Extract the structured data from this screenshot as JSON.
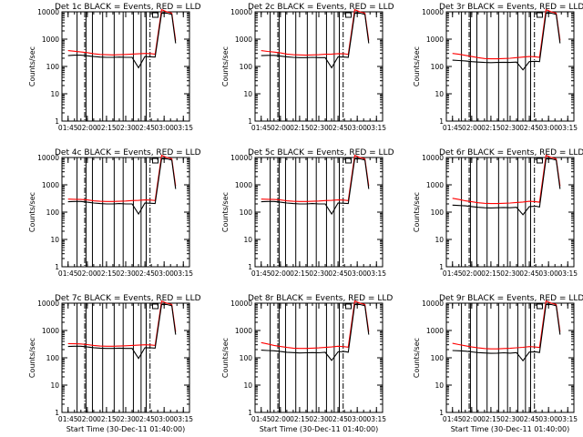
{
  "chart_data": [
    {
      "type": "line",
      "title": "Det 1c BLACK = Events, RED = LLD",
      "xlabel": "",
      "ylabel": "Counts/sec",
      "x_ticks": [
        "01:45",
        "02:00",
        "02:15",
        "02:30",
        "02:45",
        "03:00",
        "03:15"
      ],
      "xlim": [
        1.67,
        3.33
      ],
      "y_ticks": [
        "1",
        "10",
        "100",
        "1000",
        "10000"
      ],
      "ylim": [
        1,
        10000
      ],
      "yscale": "log",
      "x_minutes": [
        105,
        110,
        115,
        120,
        125,
        130,
        135,
        140,
        145,
        150,
        155,
        160,
        165,
        170,
        173,
        178,
        182,
        186,
        189
      ],
      "series": [
        {
          "name": "BLACK = Events",
          "color": "#000000",
          "values": [
            250,
            260,
            260,
            245,
            230,
            220,
            215,
            215,
            220,
            215,
            215,
            90,
            230,
            225,
            220,
            9000,
            9000,
            8000,
            700
          ]
        },
        {
          "name": "RED = LLD",
          "color": "#ff0000",
          "values": [
            380,
            360,
            340,
            320,
            290,
            275,
            270,
            265,
            270,
            275,
            285,
            290,
            300,
            295,
            280,
            12000,
            10000,
            9000,
            900
          ]
        }
      ]
    },
    {
      "type": "line",
      "title": "Det 2c BLACK = Events, RED = LLD",
      "xlabel": "",
      "ylabel": "Counts/sec",
      "x_ticks": [
        "01:45",
        "02:00",
        "02:15",
        "02:30",
        "02:45",
        "03:00",
        "03:15"
      ],
      "xlim": [
        1.67,
        3.33
      ],
      "y_ticks": [
        "1",
        "10",
        "100",
        "1000",
        "10000"
      ],
      "ylim": [
        1,
        10000
      ],
      "yscale": "log",
      "x_minutes": [
        105,
        110,
        115,
        120,
        125,
        130,
        135,
        140,
        145,
        150,
        155,
        160,
        165,
        170,
        173,
        178,
        182,
        186,
        189
      ],
      "series": [
        {
          "name": "BLACK = Events",
          "color": "#000000",
          "values": [
            250,
            255,
            255,
            240,
            225,
            215,
            210,
            210,
            215,
            210,
            210,
            90,
            225,
            220,
            215,
            9000,
            9000,
            8000,
            700
          ]
        },
        {
          "name": "RED = LLD",
          "color": "#ff0000",
          "values": [
            380,
            355,
            335,
            315,
            285,
            270,
            265,
            260,
            265,
            270,
            280,
            285,
            295,
            290,
            275,
            12000,
            10000,
            9000,
            900
          ]
        }
      ]
    },
    {
      "type": "line",
      "title": "Det 3r BLACK = Events, RED = LLD",
      "xlabel": "",
      "ylabel": "Counts/sec",
      "x_ticks": [
        "01:45",
        "02:00",
        "02:15",
        "02:30",
        "02:45",
        "03:00",
        "03:15"
      ],
      "xlim": [
        1.67,
        3.33
      ],
      "y_ticks": [
        "1",
        "10",
        "100",
        "1000",
        "10000"
      ],
      "ylim": [
        1,
        10000
      ],
      "yscale": "log",
      "x_minutes": [
        105,
        110,
        115,
        120,
        125,
        130,
        135,
        140,
        145,
        150,
        155,
        160,
        165,
        170,
        173,
        178,
        182,
        186,
        189
      ],
      "series": [
        {
          "name": "BLACK = Events",
          "color": "#000000",
          "values": [
            170,
            165,
            160,
            150,
            145,
            140,
            138,
            140,
            142,
            140,
            145,
            75,
            150,
            155,
            150,
            9000,
            9000,
            8000,
            700
          ]
        },
        {
          "name": "RED = LLD",
          "color": "#ff0000",
          "values": [
            300,
            280,
            255,
            230,
            210,
            195,
            190,
            190,
            195,
            200,
            210,
            220,
            230,
            225,
            215,
            12000,
            10000,
            9000,
            900
          ]
        }
      ]
    },
    {
      "type": "line",
      "title": "Det 4c BLACK = Events, RED = LLD",
      "xlabel": "",
      "ylabel": "Counts/sec",
      "x_ticks": [
        "01:45",
        "02:00",
        "02:15",
        "02:30",
        "02:45",
        "03:00",
        "03:15"
      ],
      "xlim": [
        1.67,
        3.33
      ],
      "y_ticks": [
        "1",
        "10",
        "100",
        "1000",
        "10000"
      ],
      "ylim": [
        1,
        10000
      ],
      "yscale": "log",
      "x_minutes": [
        105,
        110,
        115,
        120,
        125,
        130,
        135,
        140,
        145,
        150,
        155,
        160,
        165,
        170,
        173,
        178,
        182,
        186,
        189
      ],
      "series": [
        {
          "name": "BLACK = Events",
          "color": "#000000",
          "values": [
            240,
            245,
            245,
            230,
            215,
            205,
            200,
            200,
            205,
            200,
            200,
            85,
            215,
            210,
            205,
            9000,
            9000,
            8000,
            700
          ]
        },
        {
          "name": "RED = LLD",
          "color": "#ff0000",
          "values": [
            300,
            295,
            290,
            280,
            260,
            250,
            245,
            245,
            250,
            255,
            265,
            270,
            280,
            275,
            265,
            12000,
            10000,
            9000,
            900
          ]
        }
      ]
    },
    {
      "type": "line",
      "title": "Det 5c BLACK = Events, RED = LLD",
      "xlabel": "",
      "ylabel": "Counts/sec",
      "x_ticks": [
        "01:45",
        "02:00",
        "02:15",
        "02:30",
        "02:45",
        "03:00",
        "03:15"
      ],
      "xlim": [
        1.67,
        3.33
      ],
      "y_ticks": [
        "1",
        "10",
        "100",
        "1000",
        "10000"
      ],
      "ylim": [
        1,
        10000
      ],
      "yscale": "log",
      "x_minutes": [
        105,
        110,
        115,
        120,
        125,
        130,
        135,
        140,
        145,
        150,
        155,
        160,
        165,
        170,
        173,
        178,
        182,
        186,
        189
      ],
      "series": [
        {
          "name": "BLACK = Events",
          "color": "#000000",
          "values": [
            240,
            245,
            245,
            230,
            215,
            205,
            200,
            200,
            205,
            200,
            200,
            85,
            215,
            210,
            205,
            9000,
            9000,
            8000,
            700
          ]
        },
        {
          "name": "RED = LLD",
          "color": "#ff0000",
          "values": [
            300,
            295,
            290,
            280,
            260,
            250,
            245,
            245,
            250,
            255,
            265,
            270,
            280,
            275,
            265,
            12000,
            10000,
            9000,
            900
          ]
        }
      ]
    },
    {
      "type": "line",
      "title": "Det 6r BLACK = Events, RED = LLD",
      "xlabel": "",
      "ylabel": "Counts/sec",
      "x_ticks": [
        "01:45",
        "02:00",
        "02:15",
        "02:30",
        "02:45",
        "03:00",
        "03:15"
      ],
      "xlim": [
        1.67,
        3.33
      ],
      "y_ticks": [
        "1",
        "10",
        "100",
        "1000",
        "10000"
      ],
      "ylim": [
        1,
        10000
      ],
      "yscale": "log",
      "x_minutes": [
        105,
        110,
        115,
        120,
        125,
        130,
        135,
        140,
        145,
        150,
        155,
        160,
        165,
        170,
        173,
        178,
        182,
        186,
        189
      ],
      "series": [
        {
          "name": "BLACK = Events",
          "color": "#000000",
          "values": [
            180,
            175,
            170,
            160,
            150,
            145,
            142,
            145,
            148,
            145,
            150,
            80,
            160,
            165,
            155,
            9000,
            9000,
            8000,
            700
          ]
        },
        {
          "name": "RED = LLD",
          "color": "#ff0000",
          "values": [
            320,
            290,
            260,
            240,
            220,
            210,
            205,
            205,
            210,
            215,
            225,
            235,
            250,
            240,
            230,
            12000,
            10000,
            9000,
            900
          ]
        }
      ]
    },
    {
      "type": "line",
      "title": "Det 7c BLACK = Events, RED = LLD",
      "xlabel": "Start Time (30-Dec-11 01:40:00)",
      "ylabel": "Counts/sec",
      "x_ticks": [
        "01:45",
        "02:00",
        "02:15",
        "02:30",
        "02:45",
        "03:00",
        "03:15"
      ],
      "xlim": [
        1.67,
        3.33
      ],
      "y_ticks": [
        "1",
        "10",
        "100",
        "1000",
        "10000"
      ],
      "ylim": [
        1,
        10000
      ],
      "yscale": "log",
      "x_minutes": [
        105,
        110,
        115,
        120,
        125,
        130,
        135,
        140,
        145,
        150,
        155,
        160,
        165,
        170,
        173,
        178,
        182,
        186,
        189
      ],
      "series": [
        {
          "name": "BLACK = Events",
          "color": "#000000",
          "values": [
            260,
            265,
            265,
            250,
            235,
            225,
            220,
            220,
            225,
            220,
            220,
            95,
            235,
            230,
            225,
            9000,
            9000,
            8000,
            700
          ]
        },
        {
          "name": "RED = LLD",
          "color": "#ff0000",
          "values": [
            330,
            325,
            320,
            305,
            285,
            270,
            265,
            265,
            270,
            275,
            285,
            290,
            300,
            295,
            285,
            12000,
            10000,
            9000,
            900
          ]
        }
      ]
    },
    {
      "type": "line",
      "title": "Det 8r BLACK = Events, RED = LLD",
      "xlabel": "Start Time (30-Dec-11 01:40:00)",
      "ylabel": "Counts/sec",
      "x_ticks": [
        "01:45",
        "02:00",
        "02:15",
        "02:30",
        "02:45",
        "03:00",
        "03:15"
      ],
      "xlim": [
        1.67,
        3.33
      ],
      "y_ticks": [
        "1",
        "10",
        "100",
        "1000",
        "10000"
      ],
      "ylim": [
        1,
        10000
      ],
      "yscale": "log",
      "x_minutes": [
        105,
        110,
        115,
        120,
        125,
        130,
        135,
        140,
        145,
        150,
        155,
        160,
        165,
        170,
        173,
        178,
        182,
        186,
        189
      ],
      "series": [
        {
          "name": "BLACK = Events",
          "color": "#000000",
          "values": [
            190,
            185,
            180,
            170,
            160,
            155,
            150,
            152,
            155,
            152,
            158,
            80,
            165,
            170,
            160,
            9000,
            9000,
            8000,
            700
          ]
        },
        {
          "name": "RED = LLD",
          "color": "#ff0000",
          "values": [
            360,
            320,
            285,
            260,
            240,
            225,
            220,
            220,
            225,
            230,
            240,
            250,
            265,
            255,
            245,
            12000,
            10000,
            9000,
            900
          ]
        }
      ]
    },
    {
      "type": "line",
      "title": "Det 9r BLACK = Events, RED = LLD",
      "xlabel": "Start Time (30-Dec-11 01:40:00)",
      "ylabel": "Counts/sec",
      "x_ticks": [
        "01:45",
        "02:00",
        "02:15",
        "02:30",
        "02:45",
        "03:00",
        "03:15"
      ],
      "xlim": [
        1.67,
        3.33
      ],
      "y_ticks": [
        "1",
        "10",
        "100",
        "1000",
        "10000"
      ],
      "ylim": [
        1,
        10000
      ],
      "yscale": "log",
      "x_minutes": [
        105,
        110,
        115,
        120,
        125,
        130,
        135,
        140,
        145,
        150,
        155,
        160,
        165,
        170,
        173,
        178,
        182,
        186,
        189
      ],
      "series": [
        {
          "name": "BLACK = Events",
          "color": "#000000",
          "values": [
            185,
            180,
            175,
            165,
            155,
            150,
            146,
            148,
            152,
            148,
            155,
            78,
            162,
            166,
            156,
            9000,
            9000,
            8000,
            700
          ]
        },
        {
          "name": "RED = LLD",
          "color": "#ff0000",
          "values": [
            340,
            305,
            275,
            250,
            230,
            218,
            212,
            212,
            218,
            222,
            232,
            242,
            258,
            248,
            238,
            12000,
            10000,
            9000,
            900
          ]
        }
      ]
    }
  ]
}
